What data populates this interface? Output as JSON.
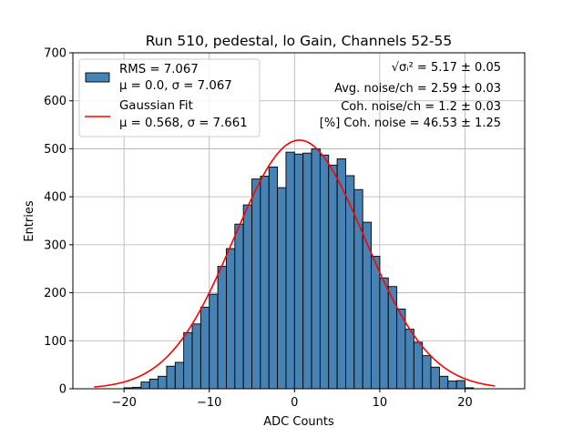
{
  "chart_data": {
    "type": "bar",
    "title": "Run 510, pedestal, lo Gain, Channels 52-55",
    "xlabel": "ADC Counts",
    "ylabel": "Entries",
    "xlim": [
      -26,
      27
    ],
    "ylim": [
      0,
      700
    ],
    "xticks": [
      -20,
      -10,
      0,
      10,
      20
    ],
    "yticks": [
      0,
      100,
      200,
      300,
      400,
      500,
      600,
      700
    ],
    "grid": true,
    "bin_width": 1,
    "bin_lefts": [
      -20,
      -19,
      -18,
      -17,
      -16,
      -15,
      -14,
      -13,
      -12,
      -11,
      -10,
      -9,
      -8,
      -7,
      -6,
      -5,
      -4,
      -3,
      -2,
      -1,
      0,
      1,
      2,
      3,
      4,
      5,
      6,
      7,
      8,
      9,
      10,
      11,
      12,
      13,
      14,
      15,
      16,
      17,
      18,
      19,
      20
    ],
    "values": [
      2,
      3,
      14,
      20,
      26,
      47,
      55,
      117,
      135,
      170,
      197,
      255,
      292,
      343,
      383,
      437,
      443,
      462,
      419,
      493,
      489,
      491,
      500,
      487,
      466,
      479,
      444,
      415,
      347,
      276,
      231,
      213,
      166,
      124,
      97,
      69,
      45,
      26,
      16,
      17,
      2
    ],
    "series": [
      {
        "name": "RMS = 7.067",
        "name_line2": "μ = 0.0, σ = 7.067",
        "color": "#4682b4"
      },
      {
        "name": "Gaussian Fit",
        "name_line2": "μ = 0.568, σ = 7.661",
        "color": "#ff0000",
        "fit": {
          "mu": 0.568,
          "sigma": 7.661,
          "amplitude": 518,
          "x_range": [
            -23.5,
            23.5
          ]
        }
      }
    ],
    "legend_position": "top-left",
    "annotations": [
      "√σᵢ² = 5.17 ± 0.05",
      "Avg. noise/ch = 2.59 ± 0.03",
      "Coh. noise/ch = 1.2 ± 0.03",
      "[%] Coh. noise = 46.53 ± 1.25"
    ]
  }
}
